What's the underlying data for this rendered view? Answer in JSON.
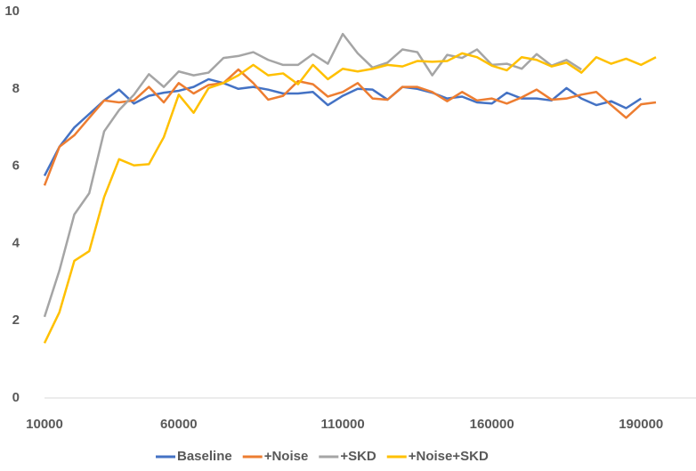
{
  "chart_data": {
    "type": "line",
    "categories": [
      "10000",
      null,
      null,
      null,
      null,
      null,
      null,
      null,
      null,
      "60000",
      null,
      null,
      null,
      null,
      null,
      null,
      null,
      null,
      null,
      null,
      "110000",
      null,
      null,
      null,
      null,
      null,
      null,
      null,
      null,
      null,
      "160000",
      null,
      null,
      null,
      null,
      null,
      null,
      null,
      null,
      null,
      "190000",
      null
    ],
    "series": [
      {
        "name": "Baseline",
        "color": "#4472c4",
        "values": [
          5.75,
          6.5,
          7.0,
          7.35,
          7.7,
          7.98,
          7.62,
          7.82,
          7.9,
          7.95,
          8.05,
          8.25,
          8.15,
          8.0,
          8.05,
          7.98,
          7.88,
          7.88,
          7.92,
          7.58,
          7.82,
          8.0,
          7.98,
          7.72,
          8.05,
          8.0,
          7.9,
          7.75,
          7.8,
          7.65,
          7.62,
          7.9,
          7.75,
          7.75,
          7.7,
          8.02,
          7.75,
          7.58,
          7.68,
          7.5,
          7.75,
          null
        ]
      },
      {
        "name": "+Noise",
        "color": "#ed7d31",
        "values": [
          5.5,
          6.5,
          6.8,
          7.25,
          7.7,
          7.65,
          7.7,
          8.05,
          7.65,
          8.15,
          7.88,
          8.1,
          8.15,
          8.5,
          8.15,
          7.72,
          7.82,
          8.2,
          8.12,
          7.8,
          7.92,
          8.15,
          7.75,
          7.72,
          8.05,
          8.05,
          7.92,
          7.68,
          7.92,
          7.7,
          7.75,
          7.62,
          7.78,
          7.98,
          7.72,
          7.75,
          7.85,
          7.92,
          7.58,
          7.25,
          7.6,
          7.65
        ]
      },
      {
        "name": "+SKD",
        "color": "#a5a5a5",
        "values": [
          2.1,
          3.3,
          4.75,
          5.3,
          6.9,
          7.45,
          7.85,
          8.38,
          8.05,
          8.45,
          8.35,
          8.42,
          8.8,
          8.85,
          8.95,
          8.75,
          8.62,
          8.62,
          8.9,
          8.65,
          9.42,
          8.92,
          8.55,
          8.68,
          9.02,
          8.95,
          8.35,
          8.88,
          8.8,
          9.02,
          8.62,
          8.65,
          8.52,
          8.9,
          8.6,
          8.75,
          8.5,
          null,
          null,
          null,
          null,
          null
        ]
      },
      {
        "name": "+Noise+SKD",
        "color": "#ffc000",
        "values": [
          1.42,
          2.22,
          3.55,
          3.8,
          5.2,
          6.18,
          6.02,
          6.05,
          6.75,
          7.85,
          7.38,
          8.02,
          8.15,
          8.35,
          8.62,
          8.35,
          8.4,
          8.12,
          8.62,
          8.25,
          8.52,
          8.45,
          8.52,
          8.62,
          8.58,
          8.72,
          8.7,
          8.72,
          8.92,
          8.82,
          8.6,
          8.48,
          8.82,
          8.75,
          8.58,
          8.68,
          8.42,
          8.82,
          8.65,
          8.78,
          8.62,
          8.82
        ]
      }
    ],
    "ylim": [
      0,
      10
    ],
    "yticks": [
      0,
      2,
      4,
      6,
      8,
      10
    ],
    "grid": false,
    "legend": "bottom"
  }
}
